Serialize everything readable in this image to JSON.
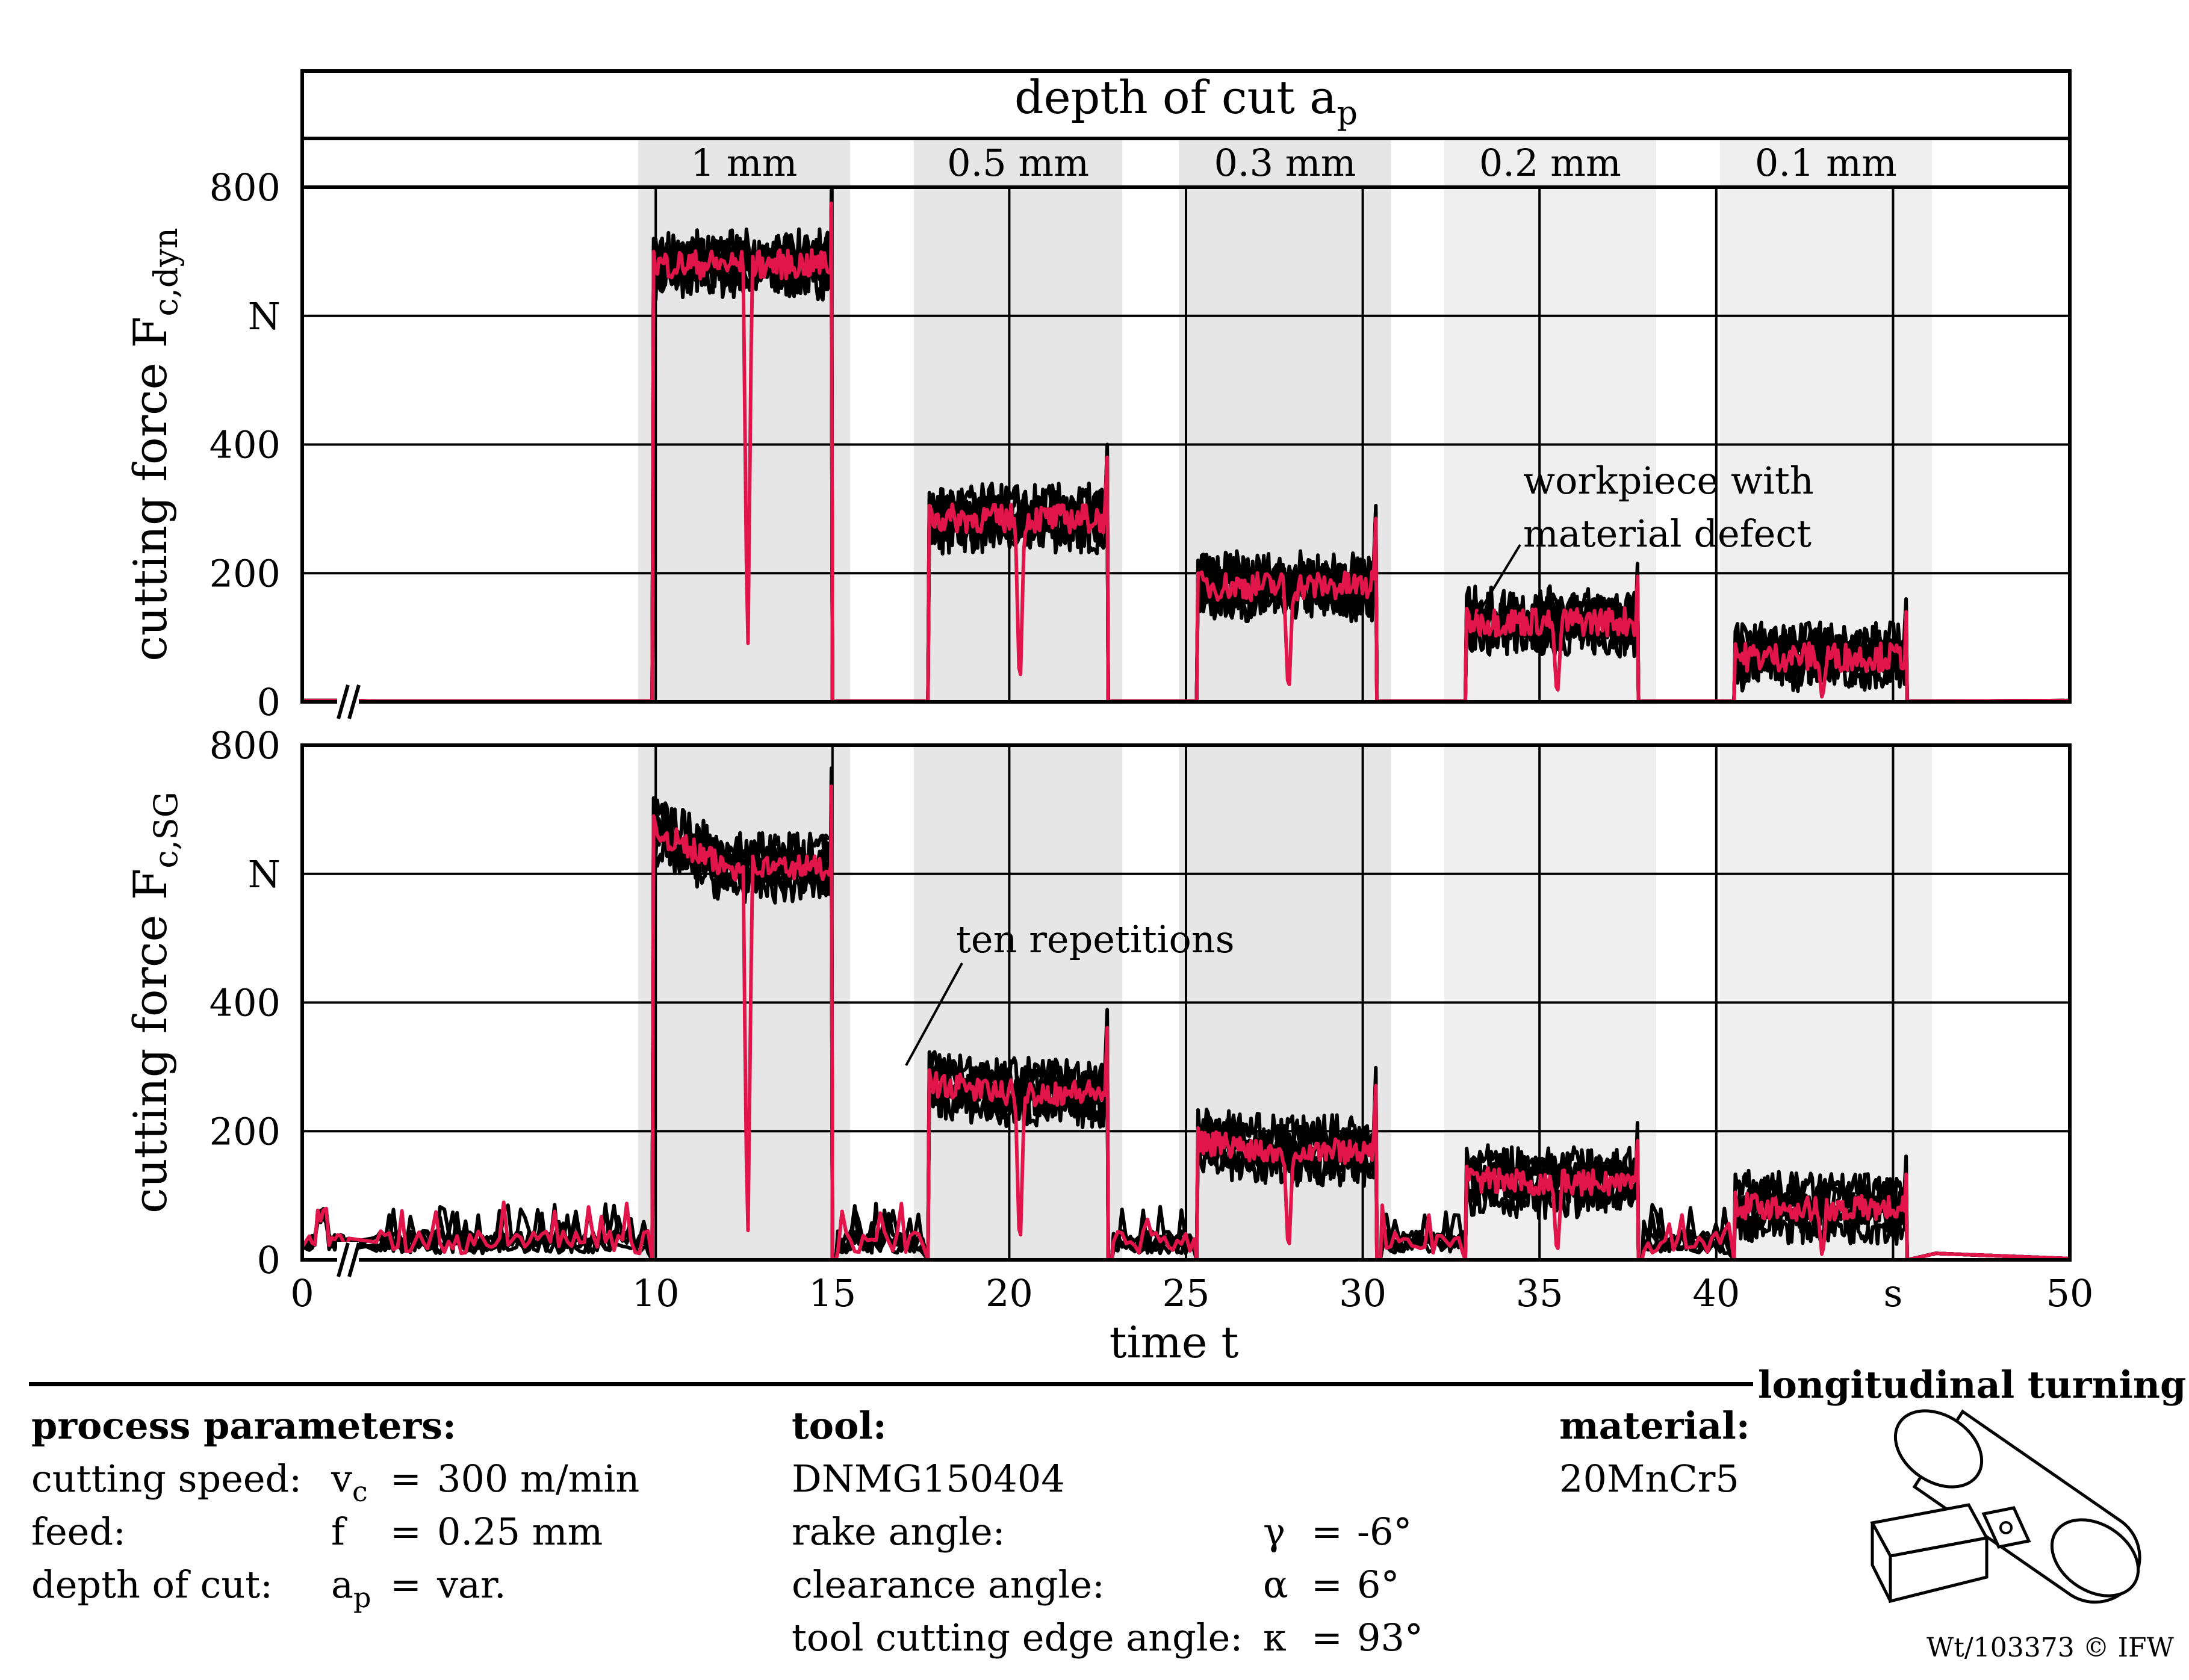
{
  "chart_data": {
    "type": "line",
    "header": {
      "title": "depth of cut a",
      "title_sub": "p"
    },
    "segments": [
      {
        "label": "1 mm",
        "band": [
          9.5,
          15.5
        ],
        "cut": [
          9.9,
          15.0
        ],
        "dyn": 680,
        "sg": 610,
        "sg_start": 670,
        "spike": 775,
        "gap": 12.6
      },
      {
        "label": "0.5 mm",
        "band": [
          17.3,
          23.2
        ],
        "cut": [
          17.7,
          22.8
        ],
        "dyn": 285,
        "sg": 260,
        "sg_start": 275,
        "spike": 380,
        "gap": 20.3
      },
      {
        "label": "0.3 mm",
        "band": [
          24.8,
          30.8
        ],
        "cut": [
          25.3,
          30.4
        ],
        "dyn": 180,
        "sg": 170,
        "sg_start": 185,
        "spike": 285,
        "gap": 27.9
      },
      {
        "label": "0.2 mm",
        "band": [
          32.3,
          38.3
        ],
        "cut": [
          32.9,
          37.8
        ],
        "dyn": 125,
        "sg": 120,
        "sg_start": 125,
        "spike": 195,
        "gap": 35.5
      },
      {
        "label": "0.1 mm",
        "band": [
          40.1,
          46.1
        ],
        "cut": [
          40.5,
          45.4
        ],
        "dyn": 70,
        "sg": 80,
        "sg_start": 85,
        "spike": 140,
        "gap": 43.0
      }
    ],
    "panels": [
      {
        "ylabel": "cutting force F",
        "ylabel_sub": "c,dyn",
        "unit": "N",
        "ylim": [
          0,
          800
        ],
        "yticks": [
          "0",
          "200",
          "400",
          "",
          "800"
        ]
      },
      {
        "ylabel": "cutting force F",
        "ylabel_sub": "c,SG",
        "unit": "N",
        "ylim": [
          0,
          800
        ],
        "yticks": [
          "0",
          "200",
          "400",
          "",
          "800"
        ]
      }
    ],
    "xlim": [
      0,
      50
    ],
    "xticks": [
      "0",
      "10",
      "15",
      "20",
      "25",
      "30",
      "35",
      "40",
      "s",
      "50"
    ],
    "xlabel": "time t",
    "annotations": [
      {
        "text_lines": [
          "workpiece with",
          "material defect"
        ],
        "panel": 0
      },
      {
        "text_lines": [
          "ten repetitions"
        ],
        "panel": 1
      }
    ],
    "series": [
      {
        "name": "ten repetitions",
        "color": "#000000"
      },
      {
        "name": "workpiece with material defect",
        "color": "#e2154b"
      }
    ]
  },
  "process": {
    "heading": "process parameters:",
    "rows": [
      {
        "label": "cutting speed:",
        "sym": "v",
        "sym_sub": "c",
        "eq": "=",
        "value": "300 m/min"
      },
      {
        "label": "feed:",
        "sym": "f",
        "sym_sub": "",
        "eq": "=",
        "value": "0.25 mm"
      },
      {
        "label": "depth of cut:",
        "sym": "a",
        "sym_sub": "p",
        "eq": "=",
        "value": "var."
      }
    ]
  },
  "tool": {
    "heading": "tool:",
    "name": "DNMG150404",
    "rows": [
      {
        "label": "rake angle:",
        "sym": "γ",
        "eq": "=",
        "value": "-6°"
      },
      {
        "label": "clearance angle:",
        "sym": "α",
        "eq": "=",
        "value": "6°"
      },
      {
        "label": "tool cutting edge angle:",
        "sym": "κ",
        "eq": "=",
        "value": "93°"
      }
    ]
  },
  "material": {
    "heading": "material:",
    "value": "20MnCr5"
  },
  "operation": {
    "title": "longitudinal turning"
  },
  "credit": "Wt/103373 © IFW",
  "colors": {
    "accent": "#e2154b",
    "band": "#e6e6e6",
    "band_light": "#efefef",
    "grid": "#000000"
  }
}
